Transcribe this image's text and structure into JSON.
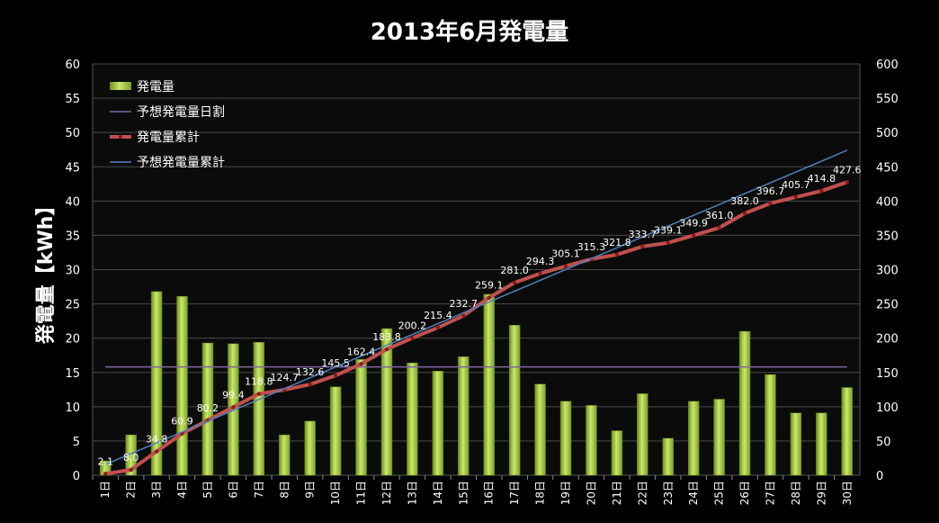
{
  "chart_data": {
    "type": "bar",
    "title": "2013年6月発電量",
    "ylabel": "発電量【kWh】",
    "xlabel": "",
    "ylim": [
      0,
      60
    ],
    "y2lim": [
      0,
      600
    ],
    "yticks": [
      "0",
      "5",
      "10",
      "15",
      "20",
      "25",
      "30",
      "35",
      "40",
      "45",
      "50",
      "55",
      "60"
    ],
    "y2ticks": [
      "0",
      "50",
      "100",
      "150",
      "200",
      "250",
      "300",
      "350",
      "400",
      "450",
      "500",
      "550",
      "600"
    ],
    "categories": [
      "1日",
      "2日",
      "3日",
      "4日",
      "5日",
      "6日",
      "7日",
      "8日",
      "9日",
      "10日",
      "11日",
      "12日",
      "13日",
      "14日",
      "15日",
      "16日",
      "17日",
      "18日",
      "19日",
      "20日",
      "21日",
      "22日",
      "23日",
      "24日",
      "25日",
      "26日",
      "27日",
      "28日",
      "29日",
      "30日"
    ],
    "grid": true,
    "legend_position": "top-left",
    "series": [
      {
        "name": "発電量",
        "type": "bar",
        "axis": "left",
        "color": "#9bc232",
        "values": [
          2.1,
          5.9,
          26.8,
          26.1,
          19.3,
          19.2,
          19.4,
          5.9,
          7.9,
          12.9,
          16.9,
          21.4,
          16.4,
          15.2,
          17.3,
          26.4,
          21.9,
          13.3,
          10.8,
          10.2,
          6.5,
          11.9,
          5.4,
          10.8,
          11.1,
          21.0,
          14.7,
          9.1,
          9.1,
          12.8
        ]
      },
      {
        "name": "予想発電量日割",
        "type": "line",
        "axis": "left",
        "color": "#8064a2",
        "values": [
          15.8,
          15.8,
          15.8,
          15.8,
          15.8,
          15.8,
          15.8,
          15.8,
          15.8,
          15.8,
          15.8,
          15.8,
          15.8,
          15.8,
          15.8,
          15.8,
          15.8,
          15.8,
          15.8,
          15.8,
          15.8,
          15.8,
          15.8,
          15.8,
          15.8,
          15.8,
          15.8,
          15.8,
          15.8,
          15.8
        ]
      },
      {
        "name": "発電量累計",
        "type": "line",
        "axis": "right",
        "color": "#c0504d",
        "labels": [
          "2.1",
          "8.0",
          "34.8",
          "60.9",
          "80.2",
          "99.4",
          "118.8",
          "124.7",
          "132.6",
          "145.5",
          "162.4",
          "183.8",
          "200.2",
          "215.4",
          "232.7",
          "259.1",
          "281.0",
          "294.3",
          "305.1",
          "315.3",
          "321.8",
          "333.7",
          "339.1",
          "349.9",
          "361.0",
          "382.0",
          "396.7",
          "405.7",
          "414.8",
          "427.6"
        ],
        "values": [
          2.1,
          8.0,
          34.8,
          60.9,
          80.2,
          99.4,
          118.8,
          124.7,
          132.6,
          145.5,
          162.4,
          183.8,
          200.2,
          215.4,
          232.7,
          259.1,
          281.0,
          294.3,
          305.1,
          315.3,
          321.8,
          333.7,
          339.1,
          349.9,
          361.0,
          382.0,
          396.7,
          405.7,
          414.8,
          427.6
        ]
      },
      {
        "name": "予想発電量累計",
        "type": "line",
        "axis": "right",
        "color": "#4f81bd",
        "values": [
          15.8,
          31.6,
          47.4,
          63.2,
          79.0,
          94.8,
          110.6,
          126.4,
          142.2,
          158.0,
          173.8,
          189.6,
          205.4,
          221.2,
          237.0,
          252.8,
          268.6,
          284.4,
          300.2,
          316.0,
          331.8,
          347.6,
          363.4,
          379.2,
          395.0,
          410.8,
          426.6,
          442.4,
          458.2,
          474.0
        ]
      }
    ]
  }
}
